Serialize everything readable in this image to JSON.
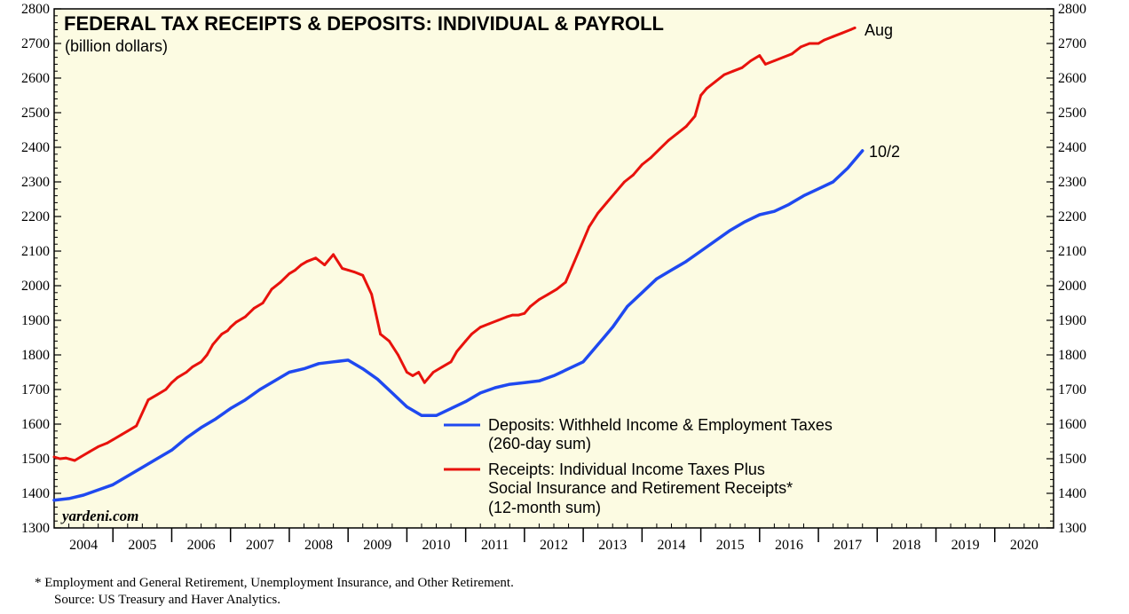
{
  "chart_data": {
    "type": "line",
    "title": "FEDERAL TAX RECEIPTS & DEPOSITS: INDIVIDUAL & PAYROLL",
    "subtitle": "(billion dollars)",
    "ylim": [
      1300,
      2800
    ],
    "y_ticks": [
      "1300",
      "1400",
      "1500",
      "1600",
      "1700",
      "1800",
      "1900",
      "2000",
      "2100",
      "2200",
      "2300",
      "2400",
      "2500",
      "2600",
      "2700",
      "2800"
    ],
    "xlim": [
      2004,
      2021
    ],
    "x_tick_labels": [
      "2004",
      "2005",
      "2006",
      "2007",
      "2008",
      "2009",
      "2010",
      "2011",
      "2012",
      "2013",
      "2014",
      "2015",
      "2016",
      "2017",
      "2018",
      "2019",
      "2020"
    ],
    "series": [
      {
        "name": "deposits",
        "color": "#1f49f0",
        "legend_lines": [
          "Deposits: Withheld Income & Employment Taxes",
          "(260-day sum)"
        ],
        "end_label": "10/2",
        "x": [
          2004.0,
          2004.25,
          2004.5,
          2004.75,
          2005.0,
          2005.25,
          2005.5,
          2005.75,
          2006.0,
          2006.25,
          2006.5,
          2006.75,
          2007.0,
          2007.25,
          2007.5,
          2007.75,
          2008.0,
          2008.25,
          2008.5,
          2008.75,
          2009.0,
          2009.25,
          2009.5,
          2009.75,
          2010.0,
          2010.25,
          2010.5,
          2010.75,
          2011.0,
          2011.25,
          2011.5,
          2011.75,
          2012.0,
          2012.25,
          2012.5,
          2012.75,
          2013.0,
          2013.25,
          2013.5,
          2013.75,
          2014.0,
          2014.25,
          2014.5,
          2014.75,
          2015.0,
          2015.25,
          2015.5,
          2015.75,
          2016.0,
          2016.25,
          2016.5,
          2016.75,
          2017.0,
          2017.25,
          2017.5,
          2017.75
        ],
        "values": [
          1380,
          1385,
          1395,
          1410,
          1425,
          1450,
          1475,
          1500,
          1525,
          1560,
          1590,
          1615,
          1645,
          1670,
          1700,
          1725,
          1750,
          1760,
          1775,
          1780,
          1785,
          1760,
          1730,
          1690,
          1650,
          1625,
          1625,
          1645,
          1665,
          1690,
          1705,
          1715,
          1720,
          1725,
          1740,
          1760,
          1780,
          1830,
          1880,
          1940,
          1980,
          2020,
          2045,
          2070,
          2100,
          2130,
          2160,
          2185,
          2205,
          2215,
          2235,
          2260,
          2280,
          2300,
          2340,
          2390
        ]
      },
      {
        "name": "receipts",
        "color": "#e8120c",
        "legend_lines": [
          "Receipts: Individual Income Taxes Plus",
          "Social Insurance and Retirement Receipts*",
          "(12-month sum)"
        ],
        "end_label": "Aug",
        "x": [
          2004.0,
          2004.1,
          2004.2,
          2004.35,
          2004.45,
          2004.6,
          2004.75,
          2004.9,
          2005.0,
          2005.15,
          2005.25,
          2005.4,
          2005.6,
          2005.75,
          2005.9,
          2006.0,
          2006.1,
          2006.25,
          2006.35,
          2006.5,
          2006.6,
          2006.7,
          2006.85,
          2006.95,
          2007.0,
          2007.1,
          2007.25,
          2007.4,
          2007.55,
          2007.7,
          2007.85,
          2008.0,
          2008.1,
          2008.2,
          2008.3,
          2008.45,
          2008.6,
          2008.75,
          2008.9,
          2009.0,
          2009.1,
          2009.25,
          2009.4,
          2009.55,
          2009.7,
          2009.85,
          2010.0,
          2010.1,
          2010.2,
          2010.3,
          2010.45,
          2010.6,
          2010.75,
          2010.85,
          2011.0,
          2011.1,
          2011.25,
          2011.4,
          2011.55,
          2011.7,
          2011.8,
          2011.9,
          2012.0,
          2012.1,
          2012.25,
          2012.4,
          2012.55,
          2012.7,
          2012.85,
          2013.0,
          2013.1,
          2013.25,
          2013.4,
          2013.55,
          2013.7,
          2013.85,
          2014.0,
          2014.15,
          2014.3,
          2014.45,
          2014.6,
          2014.75,
          2014.9,
          2015.0,
          2015.1,
          2015.25,
          2015.4,
          2015.55,
          2015.7,
          2015.85,
          2016.0,
          2016.1,
          2016.25,
          2016.4,
          2016.55,
          2016.7,
          2016.85,
          2017.0,
          2017.1,
          2017.25,
          2017.4,
          2017.55,
          2017.62
        ],
        "values": [
          1505,
          1500,
          1502,
          1495,
          1505,
          1520,
          1535,
          1545,
          1555,
          1570,
          1580,
          1595,
          1670,
          1685,
          1700,
          1720,
          1735,
          1750,
          1765,
          1780,
          1800,
          1830,
          1860,
          1870,
          1880,
          1895,
          1910,
          1935,
          1950,
          1990,
          2010,
          2035,
          2045,
          2060,
          2070,
          2080,
          2060,
          2090,
          2050,
          2045,
          2040,
          2030,
          1975,
          1860,
          1840,
          1800,
          1750,
          1740,
          1750,
          1720,
          1750,
          1765,
          1780,
          1810,
          1840,
          1860,
          1880,
          1890,
          1900,
          1910,
          1915,
          1915,
          1920,
          1940,
          1960,
          1975,
          1990,
          2010,
          2070,
          2130,
          2170,
          2210,
          2240,
          2270,
          2300,
          2320,
          2350,
          2370,
          2395,
          2420,
          2440,
          2460,
          2490,
          2550,
          2570,
          2590,
          2610,
          2620,
          2630,
          2650,
          2665,
          2640,
          2650,
          2660,
          2670,
          2690,
          2700,
          2700,
          2710,
          2720,
          2730,
          2740,
          2745
        ]
      }
    ]
  },
  "brand": "yardeni.com",
  "footnote": {
    "line1": "*  Employment and General Retirement, Unemployment Insurance, and Other Retirement.",
    "line2": "Source: US Treasury and Haver Analytics."
  }
}
